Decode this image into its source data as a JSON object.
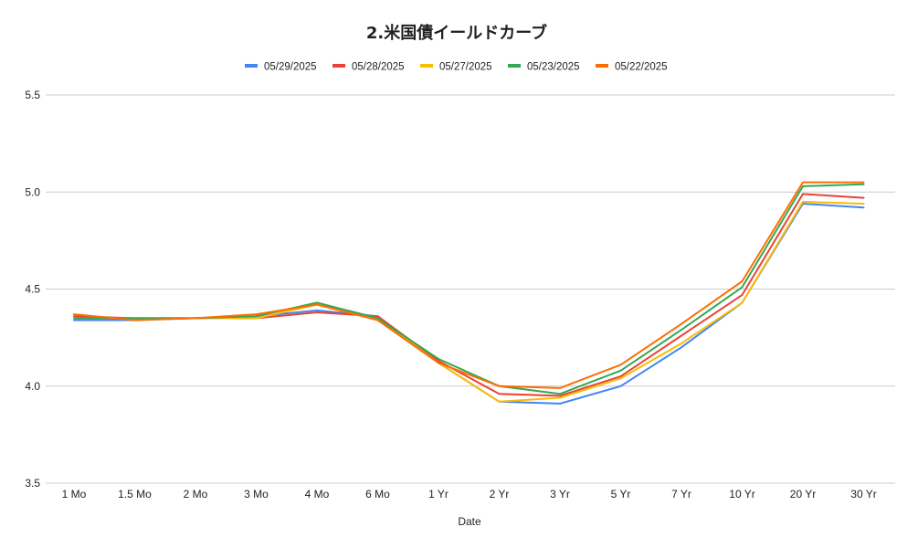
{
  "chart_data": {
    "type": "line",
    "title": "2.米国債イールドカーブ",
    "xlabel": "Date",
    "ylabel": "",
    "ylim": [
      3.5,
      5.5
    ],
    "yticks": [
      "3.5",
      "4.0",
      "4.5",
      "5.0",
      "5.5"
    ],
    "grid": true,
    "legend_position": "top",
    "categories": [
      "1 Mo",
      "1.5 Mo",
      "2 Mo",
      "3 Mo",
      "4 Mo",
      "6 Mo",
      "1 Yr",
      "2 Yr",
      "3 Yr",
      "5 Yr",
      "7 Yr",
      "10 Yr",
      "20 Yr",
      "30 Yr"
    ],
    "series": [
      {
        "name": "05/29/2025",
        "color": "#4285f4",
        "values": [
          4.34,
          4.34,
          4.35,
          4.36,
          4.39,
          4.36,
          4.12,
          3.92,
          3.91,
          4.0,
          4.2,
          4.43,
          4.94,
          4.92
        ]
      },
      {
        "name": "05/28/2025",
        "color": "#ea4335",
        "values": [
          4.36,
          4.35,
          4.35,
          4.35,
          4.38,
          4.36,
          4.13,
          3.96,
          3.95,
          4.05,
          4.26,
          4.47,
          4.99,
          4.97
        ]
      },
      {
        "name": "05/27/2025",
        "color": "#fbbc04",
        "values": [
          4.35,
          4.35,
          4.35,
          4.35,
          4.42,
          4.35,
          4.12,
          3.92,
          3.94,
          4.04,
          4.22,
          4.43,
          4.95,
          4.94
        ]
      },
      {
        "name": "05/23/2025",
        "color": "#34a853",
        "values": [
          4.35,
          4.35,
          4.35,
          4.36,
          4.43,
          4.35,
          4.14,
          4.0,
          3.96,
          4.08,
          4.29,
          4.51,
          5.03,
          5.04
        ]
      },
      {
        "name": "05/22/2025",
        "color": "#ff6d01",
        "values": [
          4.37,
          4.34,
          4.35,
          4.37,
          4.42,
          4.34,
          4.12,
          4.0,
          3.99,
          4.11,
          4.32,
          4.54,
          5.05,
          5.05
        ]
      }
    ]
  }
}
